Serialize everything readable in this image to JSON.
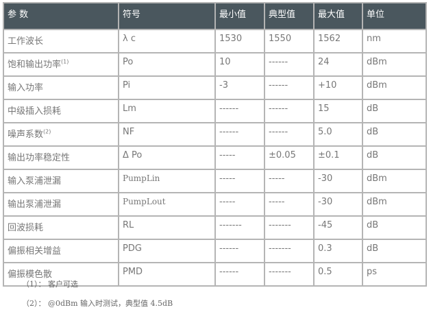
{
  "table": {
    "headers": [
      "参 数",
      "符号",
      "最小值",
      "典型值",
      "最大值",
      "单位"
    ],
    "rows": [
      {
        "param": "工作波长",
        "sup": "",
        "symbol": "λ c",
        "min": "1530",
        "typ": "1550",
        "max": "1562",
        "unit": "nm"
      },
      {
        "param": "饱和输出功率",
        "sup": "(1)",
        "symbol": "Po",
        "min": "10",
        "typ": "------",
        "max": "24",
        "unit": "dBm"
      },
      {
        "param": "输入功率",
        "sup": "",
        "symbol": "Pi",
        "min": "-3",
        "typ": "------",
        "max": "+10",
        "unit": "dBm"
      },
      {
        "param": "中级插入损耗",
        "sup": "",
        "symbol": "Lm",
        "min": "------",
        "typ": "------",
        "max": "15",
        "unit": "dB"
      },
      {
        "param": "噪声系数",
        "sup": "(2)",
        "symbol": "NF",
        "min": "------",
        "typ": "------",
        "max": "5.0",
        "unit": "dB"
      },
      {
        "param": "输出功率稳定性",
        "sup": "",
        "symbol": "Δ Po",
        "min": "-----",
        "typ": "±0.05",
        "max": "±0.1",
        "unit": "dB"
      },
      {
        "param": "输入泵浦泄漏",
        "sup": "",
        "symbol": "PumpLin",
        "min": "-----",
        "typ": "-----",
        "max": "-30",
        "unit": "dBm"
      },
      {
        "param": "输出泵浦泄漏",
        "sup": "",
        "symbol": "PumpLout",
        "min": "-----",
        "typ": "-----",
        "max": "-30",
        "unit": "dBm"
      },
      {
        "param": "回波损耗",
        "sup": "",
        "symbol": "RL",
        "min": "-------",
        "typ": "-------",
        "max": "-45",
        "unit": "dB"
      },
      {
        "param": "偏振相关增益",
        "sup": "",
        "symbol": "PDG",
        "min": "------",
        "typ": "-------",
        "max": "0.3",
        "unit": "dB"
      },
      {
        "param": "偏振模色散",
        "sup": "",
        "symbol": "PMD",
        "min": "------",
        "typ": "-------",
        "max": "0.5",
        "unit": "ps"
      }
    ]
  },
  "footnotes": [
    "（1）： 客户可选",
    "（2）： @0dBm 输入时测试，典型值 4.5dB"
  ]
}
